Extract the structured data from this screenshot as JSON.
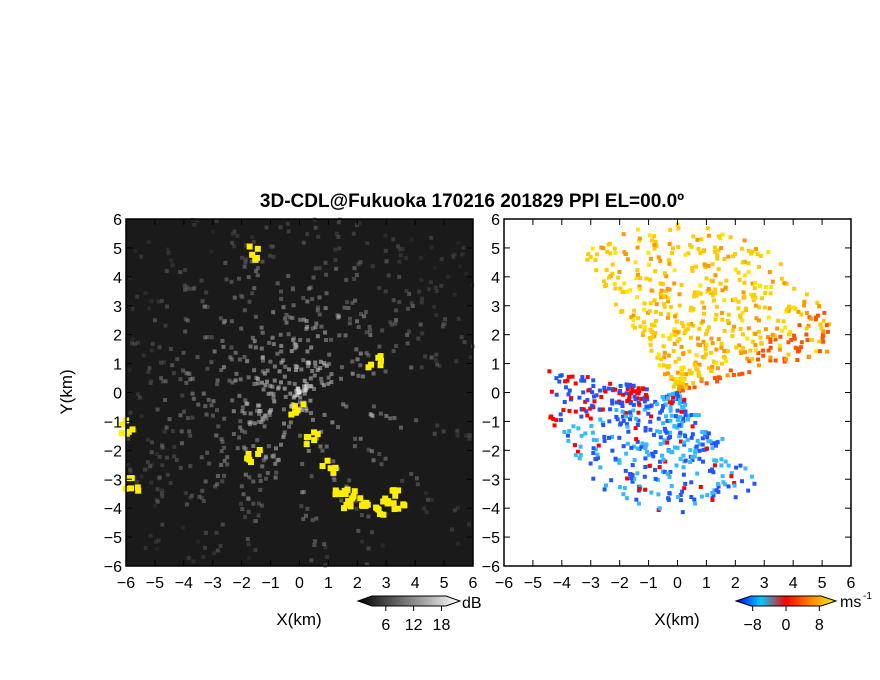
{
  "chart_data": [
    {
      "type": "heatmap",
      "panel": "left",
      "quantity": "SNR",
      "title": "3D-CDL@Fukuoka 170216 201829 PPI EL=00.0º",
      "xlabel": "X(km)",
      "ylabel": "Y(km)",
      "xlim": [
        -6,
        6
      ],
      "ylim": [
        -6,
        6
      ],
      "x_ticks": [
        "-6",
        "-5",
        "-4",
        "-3",
        "-2",
        "-1",
        "0",
        "1",
        "2",
        "3",
        "4",
        "5",
        "6"
      ],
      "y_ticks": [
        "6",
        "5",
        "4",
        "3",
        "2",
        "1",
        "0",
        "-1",
        "-2",
        "-3",
        "-4",
        "-5",
        "-6"
      ],
      "colorbar": {
        "unit": "dB",
        "ticks": [
          "6",
          "12",
          "18"
        ],
        "range": [
          0,
          22
        ],
        "colors": [
          "#000000",
          "#ffffff"
        ]
      },
      "overlay_color": "#ffee00",
      "background_color": "#1c1c1c"
    },
    {
      "type": "heatmap",
      "panel": "right",
      "quantity": "Doppler velocity",
      "xlabel": "X(km)",
      "ylabel": "",
      "xlim": [
        -6,
        6
      ],
      "ylim": [
        -6,
        6
      ],
      "x_ticks": [
        "-6",
        "-5",
        "-4",
        "-3",
        "-2",
        "-1",
        "0",
        "1",
        "2",
        "3",
        "4",
        "5",
        "6"
      ],
      "y_ticks": [
        "6",
        "5",
        "4",
        "3",
        "2",
        "1",
        "0",
        "-1",
        "-2",
        "-3",
        "-4",
        "-5",
        "-6"
      ],
      "colorbar": {
        "unit": "ms",
        "unit_exp": "-1",
        "ticks": [
          "-8",
          "0",
          "8"
        ],
        "range": [
          -12,
          12
        ],
        "colors": [
          "#0000ff",
          "#00ccff",
          "#ff0000",
          "#ff8800",
          "#ffee00"
        ]
      },
      "positive_color": "#ffcc00",
      "negative_color": "#2255ff",
      "background_color": "#ffffff"
    }
  ]
}
